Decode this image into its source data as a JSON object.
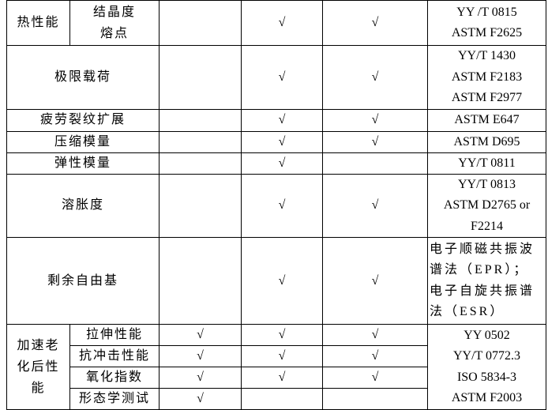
{
  "check": "√",
  "rows": [
    {
      "group": "热性能",
      "item": [
        "结晶度",
        "熔点"
      ],
      "c3": "",
      "c4": "√",
      "c5": "√",
      "std": [
        "YY /T 0815",
        "ASTM F2625"
      ]
    },
    {
      "item": "极限载荷",
      "c3": "",
      "c4": "√",
      "c5": "√",
      "std": [
        "YY/T 1430",
        "ASTM F2183",
        "ASTM F2977"
      ]
    },
    {
      "item": "疲劳裂纹扩展",
      "c3": "",
      "c4": "√",
      "c5": "√",
      "std": [
        "ASTM E647"
      ]
    },
    {
      "item": "压缩模量",
      "c3": "",
      "c4": "√",
      "c5": "√",
      "std": [
        "ASTM D695"
      ]
    },
    {
      "item": "弹性模量",
      "c3": "",
      "c4": "√",
      "c5": "",
      "std": [
        "YY/T 0811"
      ]
    },
    {
      "item": "溶胀度",
      "c3": "",
      "c4": "√",
      "c5": "√",
      "std": [
        "YY/T 0813",
        "ASTM D2765 or",
        "F2214"
      ]
    },
    {
      "item": "剩余自由基",
      "c3": "",
      "c4": "√",
      "c5": "√",
      "std": [
        "电子顺磁共振波",
        "谱法（EPR）；",
        "电子自旋共振谱",
        "法（ESR）"
      ]
    }
  ],
  "aging": {
    "group": [
      "加速老",
      "化后性",
      "能"
    ],
    "items": [
      {
        "item": "拉伸性能",
        "c3": "√",
        "c4": "√",
        "c5": "√"
      },
      {
        "item": "抗冲击性能",
        "c3": "√",
        "c4": "√",
        "c5": "√"
      },
      {
        "item": "氧化指数",
        "c3": "√",
        "c4": "√",
        "c5": "√"
      },
      {
        "item": "形态学测试",
        "c3": "√",
        "c4": "",
        "c5": ""
      }
    ],
    "std": [
      "YY 0502",
      "YY/T 0772.3",
      "ISO 5834-3",
      "ASTM F2003"
    ]
  }
}
